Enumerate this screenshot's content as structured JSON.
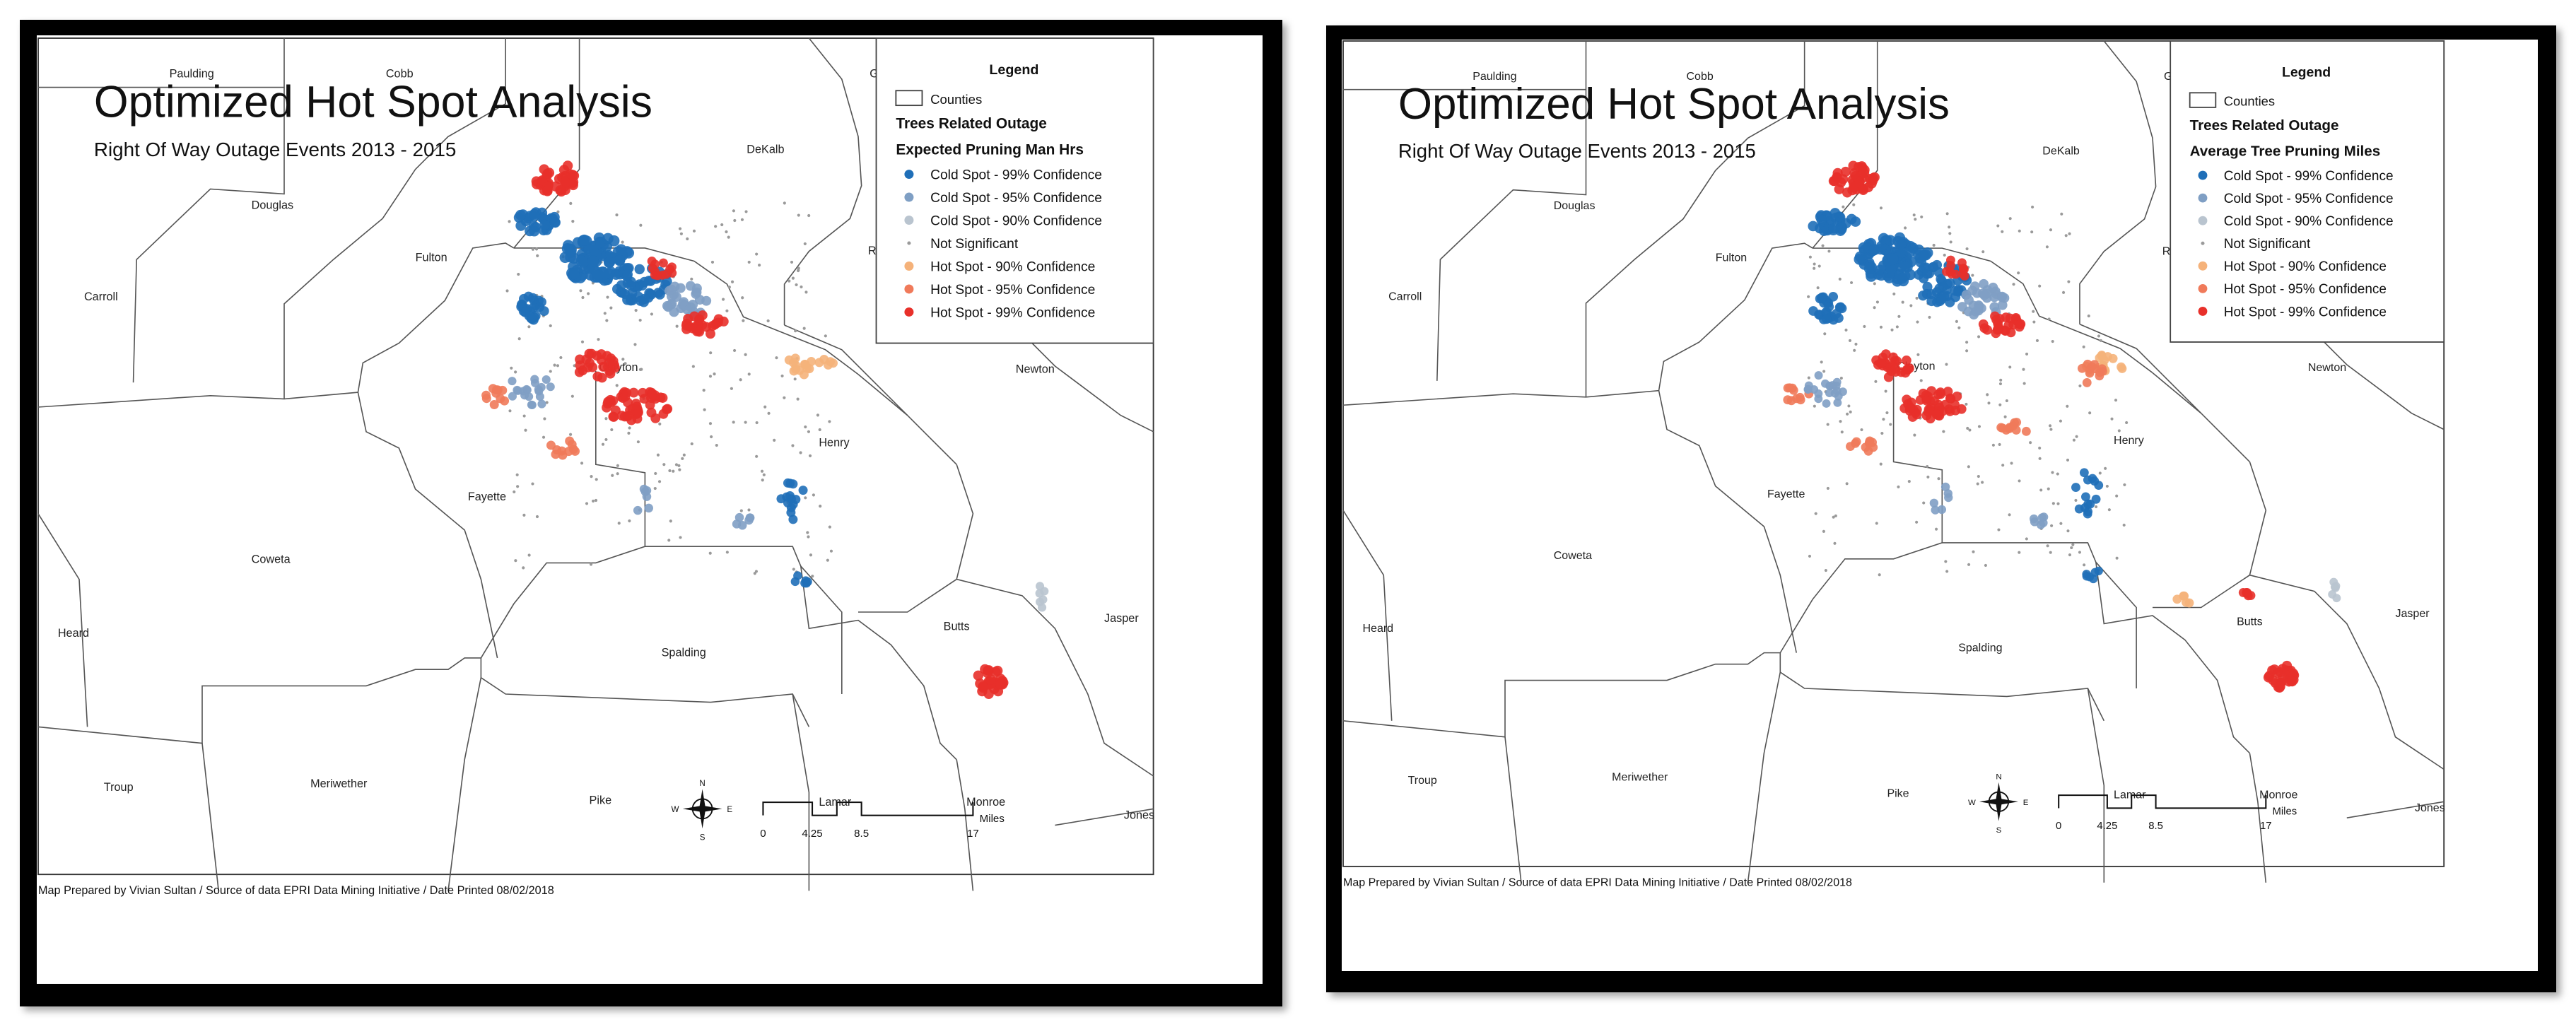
{
  "maps": [
    {
      "title": "Optimized Hot Spot Analysis",
      "subtitle": "Right Of Way Outage Events 2013 - 2015",
      "legend": {
        "heading": "Legend",
        "counties_label": "Counties",
        "group_title": "Trees Related Outage",
        "field_title": "Expected Pruning Man Hrs",
        "items": [
          {
            "label": "Cold Spot - 99% Confidence",
            "color": "#1f6fb8",
            "symbol": "dot"
          },
          {
            "label": "Cold Spot - 95% Confidence",
            "color": "#7f9fc4",
            "symbol": "dot"
          },
          {
            "label": "Cold Spot - 90% Confidence",
            "color": "#b9c4cf",
            "symbol": "dot"
          },
          {
            "label": "Not Significant",
            "color": "#9a9a9a",
            "symbol": "small"
          },
          {
            "label": "Hot Spot - 90% Confidence",
            "color": "#f5b27a",
            "symbol": "dot"
          },
          {
            "label": "Hot Spot - 95% Confidence",
            "color": "#f07a5a",
            "symbol": "dot"
          },
          {
            "label": "Hot Spot - 99% Confidence",
            "color": "#e8302a",
            "symbol": "dot"
          }
        ]
      },
      "footer": "Map Prepared by Vivian Sultan / Source of data EPRI Data Mining Initiative / Date Printed 08/02/2018"
    },
    {
      "title": "Optimized Hot Spot Analysis",
      "subtitle": "Right Of Way Outage Events 2013 - 2015",
      "legend": {
        "heading": "Legend",
        "counties_label": "Counties",
        "group_title": "Trees Related Outage",
        "field_title": "Average Tree Pruning Miles",
        "items": [
          {
            "label": "Cold Spot - 99% Confidence",
            "color": "#1f6fb8",
            "symbol": "dot"
          },
          {
            "label": "Cold Spot - 95% Confidence",
            "color": "#7f9fc4",
            "symbol": "dot"
          },
          {
            "label": "Cold Spot - 90% Confidence",
            "color": "#b9c4cf",
            "symbol": "dot"
          },
          {
            "label": "Not Significant",
            "color": "#9a9a9a",
            "symbol": "small"
          },
          {
            "label": "Hot Spot - 90% Confidence",
            "color": "#f5b27a",
            "symbol": "dot"
          },
          {
            "label": "Hot Spot - 95% Confidence",
            "color": "#f07a5a",
            "symbol": "dot"
          },
          {
            "label": "Hot Spot - 99% Confidence",
            "color": "#e8302a",
            "symbol": "dot"
          }
        ]
      },
      "footer": "Map Prepared by Vivian Sultan / Source of data EPRI Data Mining Initiative / Date Printed 08/02/2018"
    }
  ],
  "counties": [
    "Paulding",
    "Cobb",
    "Gwinnett",
    "DeKalb",
    "Douglas",
    "Fulton",
    "Rockdale",
    "Carroll",
    "Clayton",
    "Newton",
    "Henry",
    "Fayette",
    "Coweta",
    "Heard",
    "Spalding",
    "Butts",
    "Jasper",
    "Troup",
    "Meriwether",
    "Pike",
    "Lamar",
    "Monroe",
    "Jones"
  ],
  "scale_bar": {
    "ticks": [
      "0",
      "4.25",
      "8.5",
      "17"
    ],
    "unit": "Miles"
  },
  "north_arrow": {
    "n": "N",
    "s": "S",
    "e": "E",
    "w": "W"
  }
}
